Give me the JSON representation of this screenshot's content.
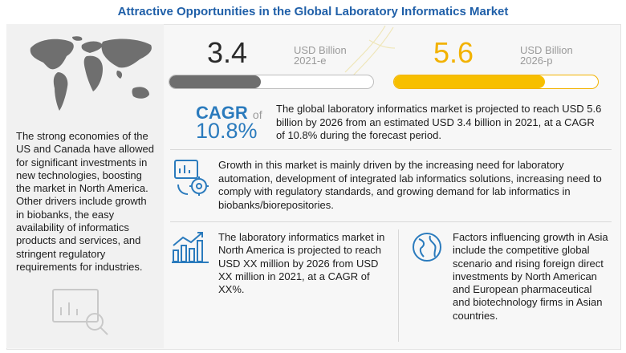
{
  "title": "Attractive Opportunities in the Global Laboratory Informatics Market",
  "left": {
    "text": "The strong economies of the US and Canada have allowed for significant investments in new technologies, boosting the market in North America. Other drivers include growth in biobanks, the easy availability of informatics products and services, and stringent regulatory requirements for industries."
  },
  "market": {
    "value_2021": "3.4",
    "unit_2021_line1": "USD Billion",
    "unit_2021_line2": "2021-e",
    "fill_2021": 0.45,
    "value_2026": "5.6",
    "unit_2026_line1": "USD Billion",
    "unit_2026_line2": "2026-p",
    "fill_2026": 0.74
  },
  "cagr": {
    "label": "CAGR",
    "of": "of",
    "value": "10.8%",
    "text": "The global laboratory informatics market is projected to reach USD 5.6 billion by 2026 from an estimated USD 3.4 billion in 2021, at a CAGR of 10.8% during the forecast period."
  },
  "growth": {
    "text": "Growth in this market is mainly driven by the increasing need for laboratory automation, development of integrated lab informatics solutions, increasing need to comply with regulatory standards, and growing demand for lab informatics in biobanks/biorepositories."
  },
  "north_america": {
    "text": "The laboratory informatics market in North America is projected to reach USD XX million by 2026 from USD XX million in 2021, at a CAGR of XX%."
  },
  "asia": {
    "text": "Factors influencing growth in Asia include the competitive global scenario and rising foreign direct investments by North American and European pharmaceutical and biotechnology firms in Asian countries."
  },
  "colors": {
    "title": "#1f5fa8",
    "accent_blue": "#2b7bbd",
    "accent_yellow": "#f7bf00",
    "bar_gray": "#6e6e6e"
  },
  "icons": [
    "world-map-icon",
    "automation-gear-icon",
    "growth-chart-icon",
    "globe-icon",
    "analytics-icon"
  ]
}
